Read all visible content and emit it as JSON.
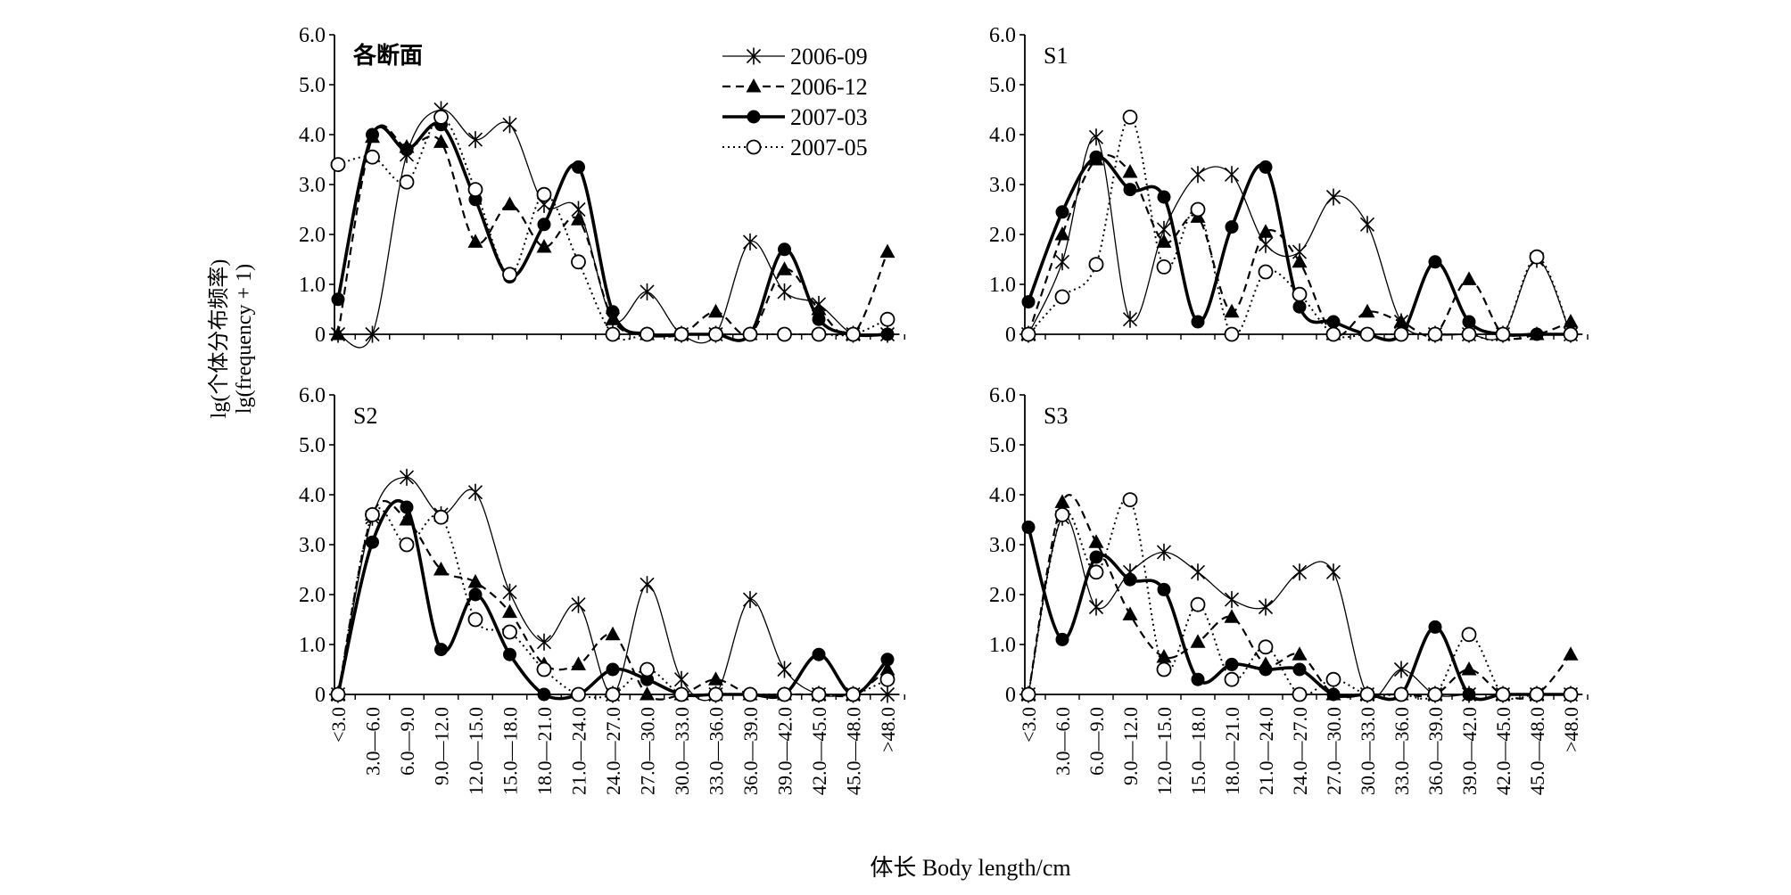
{
  "figure": {
    "ylabel_cn": "lg(个体分布频率)",
    "ylabel_en": "lg(frequency + 1)",
    "xlabel": "体长 Body length/cm"
  },
  "chart_data": {
    "type": "line",
    "categories": [
      "<3.0",
      "3.0—6.0",
      "6.0—9.0",
      "9.0—12.0",
      "12.0—15.0",
      "15.0—18.0",
      "18.0—21.0",
      "21.0—24.0",
      "24.0—27.0",
      "27.0—30.0",
      "30.0—33.0",
      "33.0—36.0",
      "36.0—39.0",
      "39.0—42.0",
      "42.0—45.0",
      "45.0—48.0",
      ">48.0"
    ],
    "yticks": [
      "0",
      "1.0",
      "2.0",
      "3.0",
      "4.0",
      "5.0",
      "6.0"
    ],
    "ylim": [
      0,
      6
    ],
    "legend": [
      {
        "name": "2006-09",
        "color": "#000000",
        "marker": "star",
        "line": "solid-thin"
      },
      {
        "name": "2006-12",
        "color": "#000000",
        "marker": "triangle",
        "line": "dashed"
      },
      {
        "name": "2007-03",
        "color": "#000000",
        "marker": "filled-circle",
        "line": "solid-thick"
      },
      {
        "name": "2007-05",
        "color": "#000000",
        "marker": "open-circle",
        "line": "dotted"
      }
    ],
    "legend_position": "top-right of first panel",
    "panels": [
      {
        "title": "各断面",
        "series": [
          {
            "name": "2006-09",
            "values": [
              0,
              0,
              3.6,
              4.5,
              3.9,
              4.2,
              2.6,
              2.5,
              0.3,
              0.85,
              0,
              0,
              1.85,
              0.85,
              0.6,
              0,
              0
            ]
          },
          {
            "name": "2006-12",
            "values": [
              0,
              3.95,
              3.75,
              3.85,
              1.85,
              2.6,
              1.75,
              2.3,
              0.3,
              0,
              0,
              0.45,
              0,
              1.3,
              0.5,
              0,
              1.65
            ]
          },
          {
            "name": "2007-03",
            "values": [
              0.7,
              4.0,
              3.7,
              4.2,
              2.7,
              1.15,
              2.2,
              3.35,
              0.45,
              0,
              0,
              0,
              0,
              1.7,
              0.3,
              0,
              0
            ]
          },
          {
            "name": "2007-05",
            "values": [
              3.4,
              3.55,
              3.05,
              4.35,
              2.9,
              1.2,
              2.8,
              1.45,
              0,
              0,
              0,
              0,
              0,
              0,
              0,
              0,
              0.3
            ]
          }
        ]
      },
      {
        "title": "S1",
        "series": [
          {
            "name": "2006-09",
            "values": [
              0,
              1.45,
              3.95,
              0.3,
              2.1,
              3.2,
              3.2,
              1.8,
              1.65,
              2.75,
              2.2,
              0.25,
              0,
              0,
              0,
              1.5,
              0
            ]
          },
          {
            "name": "2006-12",
            "values": [
              0,
              2.0,
              3.5,
              3.25,
              1.85,
              2.35,
              0.45,
              2.05,
              1.45,
              0,
              0.45,
              0.25,
              0,
              1.1,
              0,
              0,
              0.25
            ]
          },
          {
            "name": "2007-03",
            "values": [
              0.65,
              2.45,
              3.55,
              2.9,
              2.75,
              0.25,
              2.15,
              3.35,
              0.55,
              0.25,
              0,
              0,
              1.45,
              0.25,
              0,
              0,
              0
            ]
          },
          {
            "name": "2007-05",
            "values": [
              0,
              0.75,
              1.4,
              4.35,
              1.35,
              2.5,
              0,
              1.25,
              0.8,
              0,
              0,
              0,
              0,
              0,
              0,
              1.55,
              0
            ]
          }
        ]
      },
      {
        "title": "S2",
        "series": [
          {
            "name": "2006-09",
            "values": [
              0,
              3.55,
              4.35,
              3.6,
              4.05,
              2.05,
              1.05,
              1.8,
              0,
              2.2,
              0.3,
              0,
              1.9,
              0.5,
              0,
              0,
              0
            ]
          },
          {
            "name": "2006-12",
            "values": [
              0,
              3.6,
              3.5,
              2.5,
              2.25,
              1.65,
              0.6,
              0.6,
              1.2,
              0,
              0,
              0.3,
              0,
              0,
              0,
              0,
              0.5
            ]
          },
          {
            "name": "2007-03",
            "values": [
              0,
              3.05,
              3.75,
              0.9,
              2.0,
              0.8,
              0,
              0,
              0.5,
              0.3,
              0,
              0,
              0,
              0,
              0.8,
              0,
              0.7
            ]
          },
          {
            "name": "2007-05",
            "values": [
              0,
              3.6,
              3.0,
              3.55,
              1.5,
              1.25,
              0.5,
              0,
              0,
              0.5,
              0,
              0,
              0,
              0,
              0,
              0,
              0.3
            ]
          }
        ]
      },
      {
        "title": "S3",
        "series": [
          {
            "name": "2006-09",
            "values": [
              0,
              3.55,
              1.75,
              2.45,
              2.85,
              2.45,
              1.9,
              1.75,
              2.45,
              2.45,
              0,
              0.5,
              0,
              0,
              0,
              0,
              0
            ]
          },
          {
            "name": "2006-12",
            "values": [
              0,
              3.85,
              3.05,
              1.6,
              0.75,
              1.05,
              1.55,
              0.6,
              0.8,
              0,
              0,
              0,
              0,
              0.5,
              0,
              0,
              0.8
            ]
          },
          {
            "name": "2007-03",
            "values": [
              3.35,
              1.1,
              2.75,
              2.3,
              2.1,
              0.3,
              0.6,
              0.5,
              0.5,
              0,
              0,
              0,
              1.35,
              0,
              0,
              0,
              0
            ]
          },
          {
            "name": "2007-05",
            "values": [
              0,
              3.6,
              2.45,
              3.9,
              0.5,
              1.8,
              0.3,
              0.95,
              0,
              0.3,
              0,
              0,
              0,
              1.2,
              0,
              0,
              0
            ]
          }
        ]
      }
    ]
  }
}
